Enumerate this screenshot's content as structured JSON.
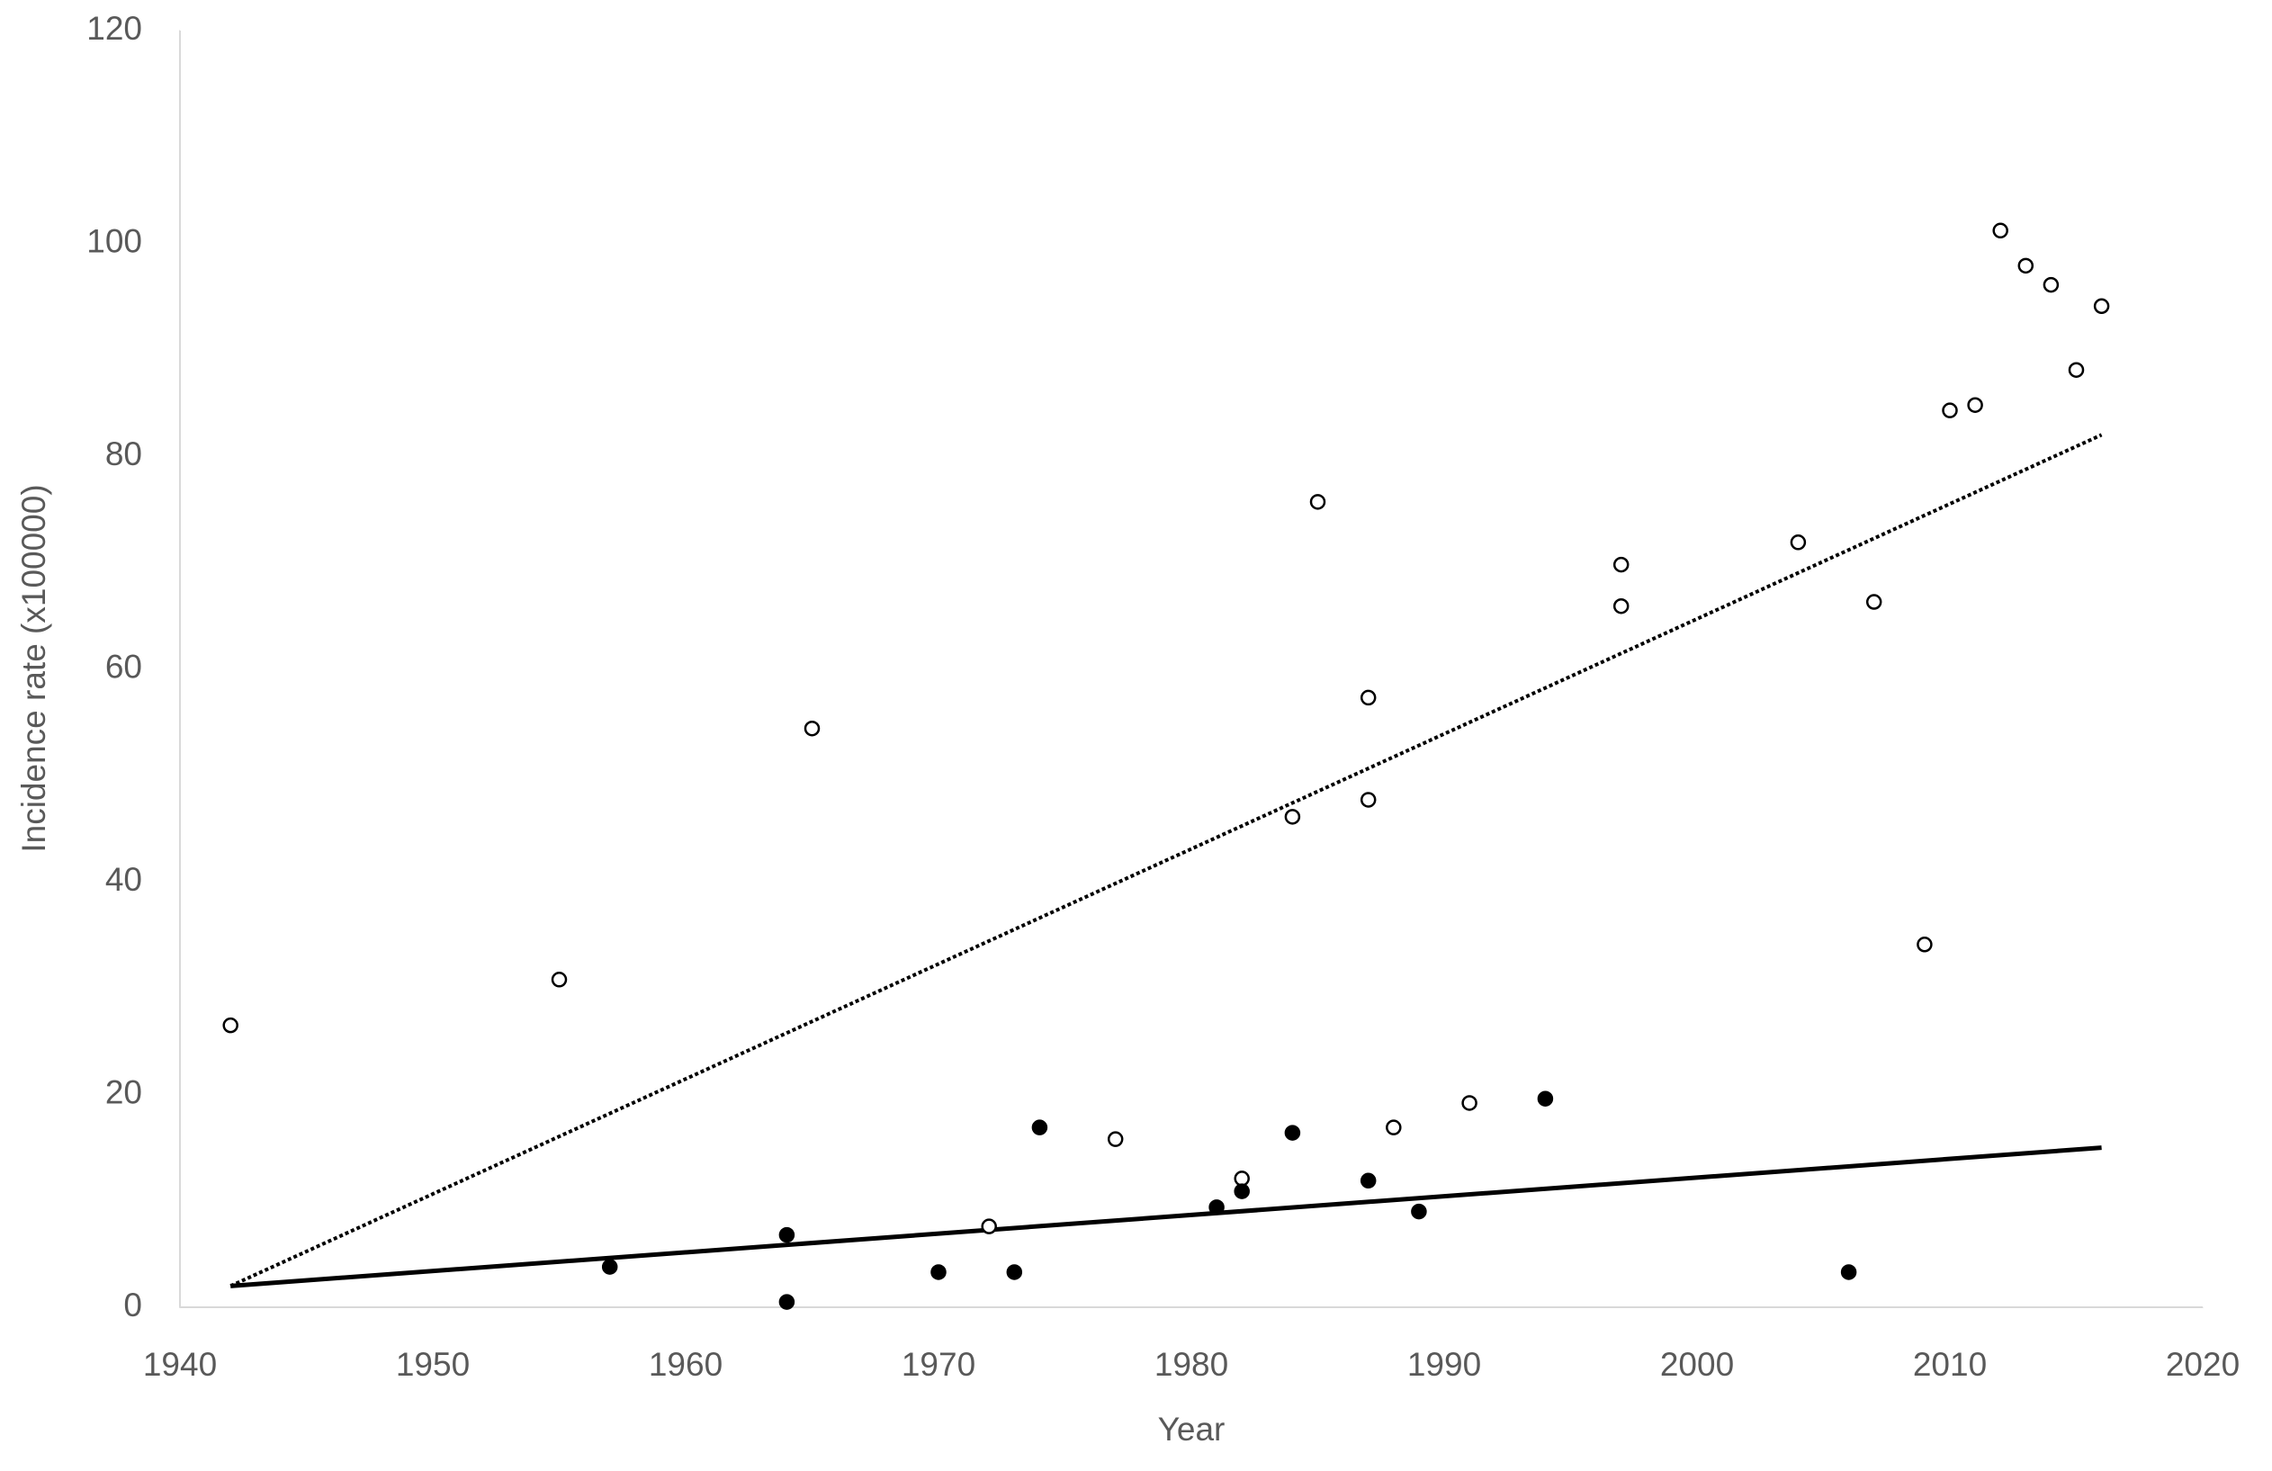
{
  "chart_data": {
    "type": "scatter",
    "x_label": "Year",
    "y_label": "Incidence rate (x100000)",
    "xlim": [
      1940,
      2020
    ],
    "xticks": [
      1940,
      1950,
      1960,
      1970,
      1980,
      1990,
      2000,
      2010,
      2020
    ],
    "ylim": [
      0,
      120
    ],
    "yticks": [
      0,
      20,
      40,
      60,
      80,
      100,
      120
    ],
    "grid": false,
    "series": [
      {
        "marker": "open",
        "color": "#000000",
        "x": [
          1942,
          1955,
          1965,
          1972,
          1977,
          1982,
          1984,
          1985,
          1987,
          1987,
          1988,
          1991,
          1997,
          1997,
          2004,
          2007,
          2009,
          2010,
          2011,
          2012,
          2013,
          2014,
          2015,
          2016
        ],
        "values": [
          26.5,
          30.8,
          54.4,
          7.6,
          15.8,
          12.1,
          46.1,
          75.7,
          57.3,
          47.7,
          16.9,
          19.2,
          69.8,
          65.9,
          71.9,
          66.3,
          34.1,
          84.3,
          84.8,
          101.2,
          97.9,
          96.1,
          88.1,
          94.1
        ]
      },
      {
        "marker": "filled",
        "color": "#000000",
        "x": [
          1957,
          1964,
          1964,
          1970,
          1973,
          1974,
          1981,
          1982,
          1984,
          1987,
          1989,
          1994,
          2006
        ],
        "values": [
          3.8,
          6.8,
          0.5,
          3.3,
          3.3,
          16.9,
          9.4,
          10.9,
          16.4,
          11.9,
          9.0,
          19.6,
          3.3
        ]
      }
    ],
    "trendlines": [
      {
        "style": "dotted",
        "color": "#000000",
        "x": [
          1942,
          2016
        ],
        "values": [
          2.0,
          82.0
        ]
      },
      {
        "style": "solid",
        "color": "#000000",
        "x": [
          1942,
          2016
        ],
        "values": [
          2.0,
          15.0
        ]
      }
    ]
  }
}
